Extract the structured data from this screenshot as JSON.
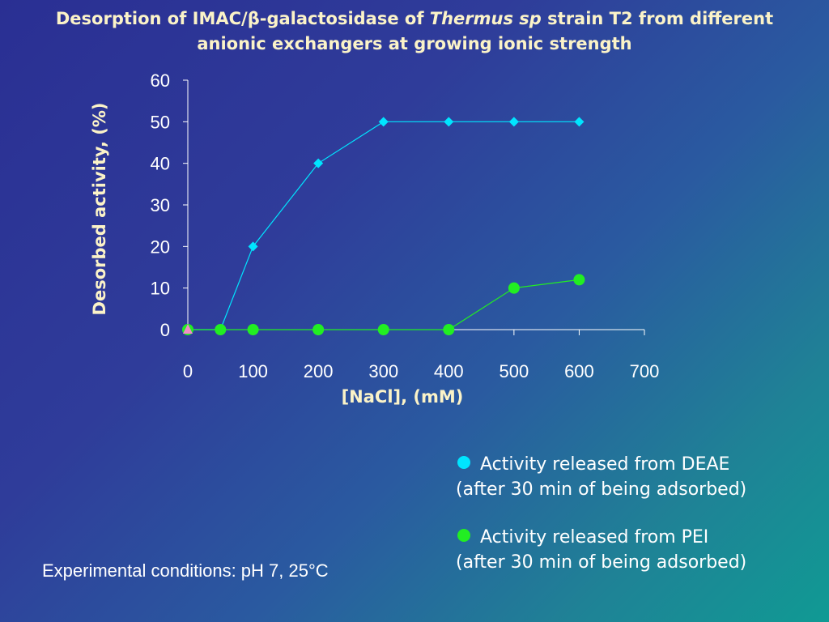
{
  "slide": {
    "title_line1_pre": "Desorption of IMAC/",
    "title_beta": "β",
    "title_line1_mid": "-galactosidase of ",
    "title_italic": "Thermus sp",
    "title_line1_post": " strain T2 from different",
    "title_line2": "anionic exchangers at growing ionic strength",
    "conditions": "Experimental conditions: pH 7, 25°C"
  },
  "legend": [
    {
      "line1": "Activity released from DEAE",
      "line2": "(after 30 min of being adsorbed)",
      "color": "#00e5ff"
    },
    {
      "line1": "Activity released from PEI",
      "line2": "(after 30 min of being adsorbed)",
      "color": "#22ee22"
    }
  ],
  "chart_data": {
    "type": "line",
    "xlabel": "[NaCl], (mM)",
    "ylabel": "Desorbed activity, (%)",
    "xlim": [
      0,
      700
    ],
    "ylim": [
      0,
      60
    ],
    "xticks": [
      0,
      100,
      200,
      300,
      400,
      500,
      600,
      700
    ],
    "yticks": [
      0,
      10,
      20,
      30,
      40,
      50,
      60
    ],
    "grid": false,
    "series": [
      {
        "marker": "diamond",
        "color": "#00e5ff",
        "x": [
          0,
          50,
          100,
          200,
          300,
          400,
          500,
          600
        ],
        "y": [
          0,
          0,
          20,
          40,
          50,
          50,
          50,
          50
        ]
      },
      {
        "marker": "circle",
        "color": "#22ee22",
        "x": [
          0,
          50,
          100,
          200,
          300,
          400,
          500,
          600
        ],
        "y": [
          0,
          0,
          0,
          0,
          0,
          0,
          10,
          12
        ]
      },
      {
        "marker": "triangle",
        "color": "#f08cc8",
        "x": [
          0
        ],
        "y": [
          0
        ]
      }
    ]
  }
}
